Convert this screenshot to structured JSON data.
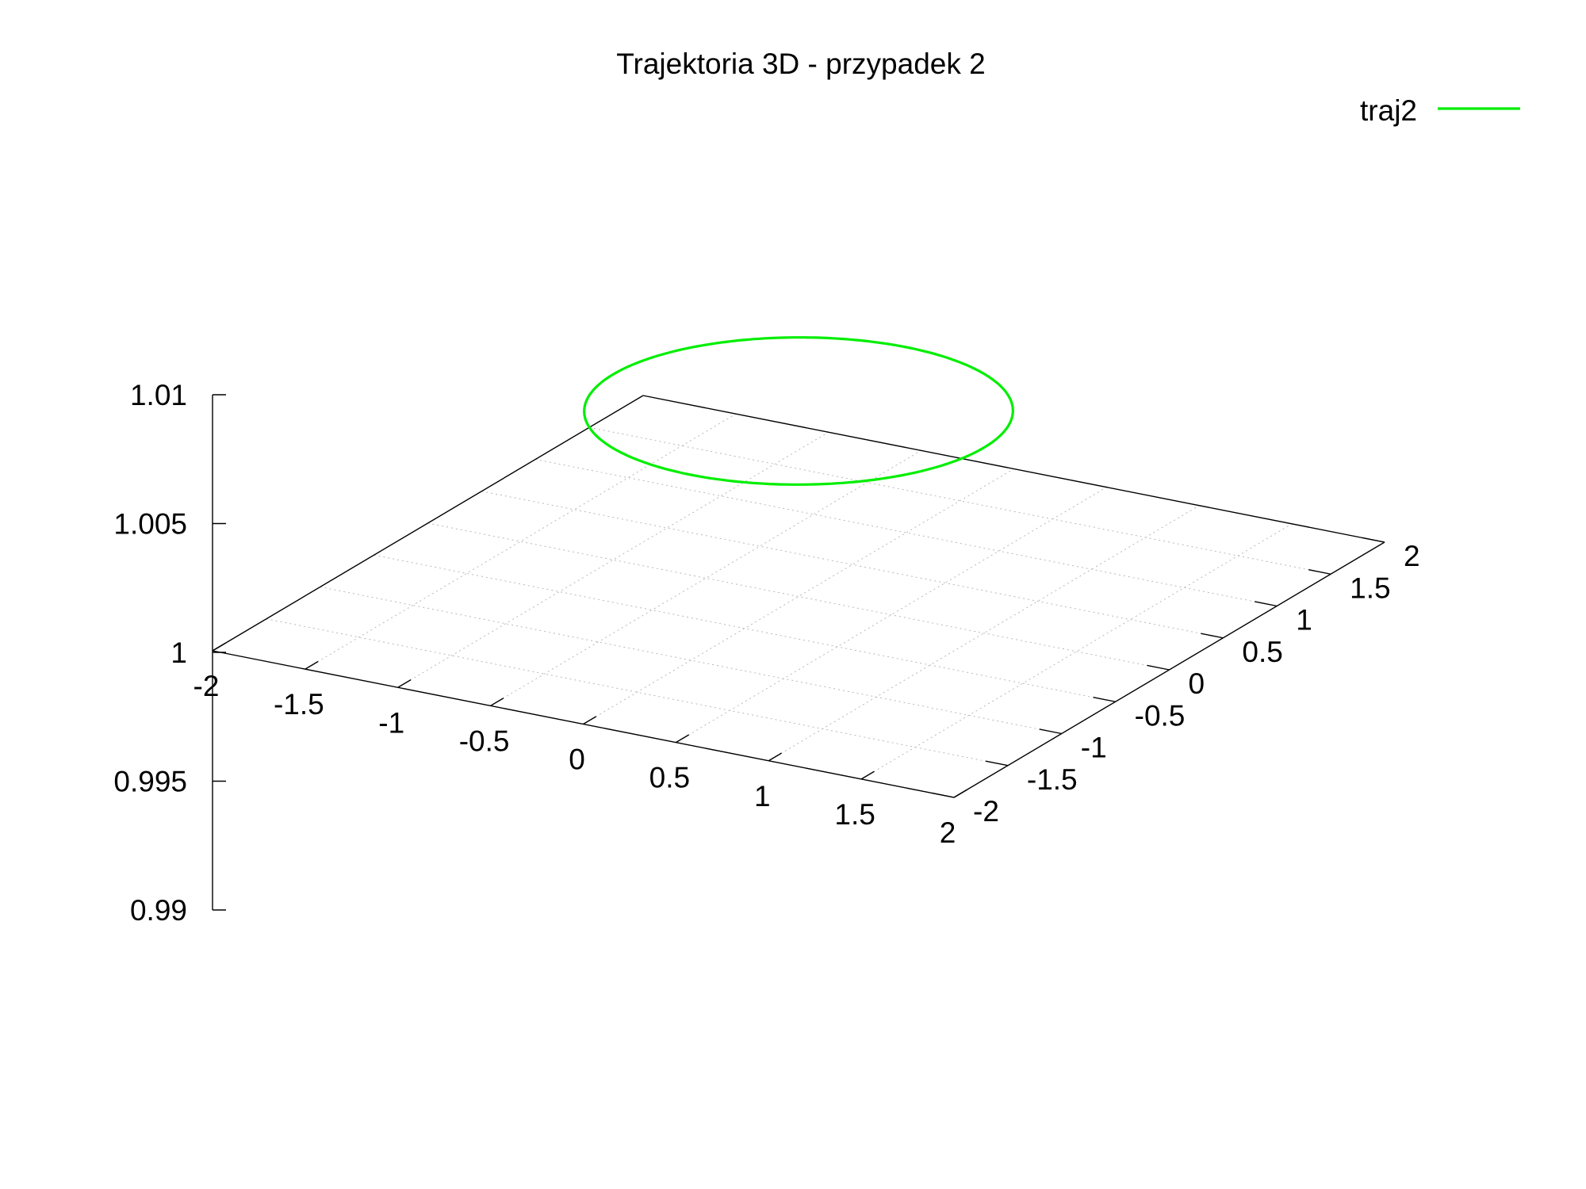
{
  "chart_data": {
    "type": "line",
    "projection": "3d",
    "title": "Trajektoria 3D - przypadek 2",
    "xlabel": "",
    "ylabel": "",
    "zlabel": "",
    "xlim": [
      -2,
      2
    ],
    "ylim": [
      -2,
      2
    ],
    "zlim": [
      0.99,
      1.01
    ],
    "x_ticks": [
      -2,
      -1.5,
      -1,
      -0.5,
      0,
      0.5,
      1,
      1.5,
      2
    ],
    "x_tick_labels": [
      "-2",
      "-1.5",
      "-1",
      "-0.5",
      "0",
      "0.5",
      "1",
      "1.5",
      "2"
    ],
    "y_ticks": [
      -2,
      -1.5,
      -1,
      -0.5,
      0,
      0.5,
      1,
      1.5,
      2
    ],
    "y_tick_labels": [
      "-2",
      "-1.5",
      "-1",
      "-0.5",
      "0",
      "0.5",
      "1",
      "1.5",
      "2"
    ],
    "z_ticks": [
      0.99,
      0.995,
      1,
      1.005,
      1.01
    ],
    "z_tick_labels": [
      "0.99",
      "0.995",
      "1",
      "1.005",
      "1.01"
    ],
    "grid": true,
    "legend_position": "top-right",
    "series": [
      {
        "name": "traj2",
        "color": "#00ee00",
        "shape": "circle",
        "center": [
          0,
          0
        ],
        "radius": 1,
        "z": 1.0072
      }
    ]
  }
}
